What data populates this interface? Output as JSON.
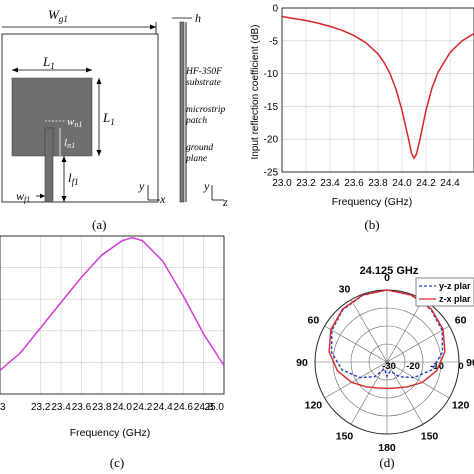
{
  "panel_a": {
    "caption": "(a)",
    "dim_wg1": "W",
    "dim_wg1_sub": "g1",
    "dim_L1_top": "L",
    "dim_L1_top_sub": "1",
    "dim_L1_right": "L",
    "dim_L1_right_sub": "1",
    "dim_wn1": "w",
    "dim_wn1_sub": "n1",
    "dim_ln1": "l",
    "dim_ln1_sub": "n1",
    "dim_lf1": "l",
    "dim_lf1_sub": "f1",
    "dim_wf1": "w",
    "dim_wf1_sub": "f1",
    "dim_h": "h",
    "label_substrate_1": "HF-350F",
    "label_substrate_2": "substrate",
    "label_patch_1": "microstrip",
    "label_patch_2": "patch",
    "label_ground_1": "ground",
    "label_ground_2": "plane",
    "axis_front_y": "y",
    "axis_front_x": "x",
    "axis_side_y": "y",
    "axis_side_z": "z",
    "colors": {
      "patch": "#6e6e6e",
      "outline": "#333333"
    }
  },
  "panel_b": {
    "caption": "(b)",
    "chart_data": {
      "type": "line",
      "xlabel": "Frequency (GHz)",
      "ylabel": "Input reflection coefficient (dB)",
      "xlim": [
        23.0,
        24.6
      ],
      "ylim": [
        -25,
        0
      ],
      "xticks": [
        "23.0",
        "23.2",
        "23.4",
        "23.6",
        "23.8",
        "24.0",
        "24.2",
        "24.4"
      ],
      "yticks": [
        "0",
        "-5",
        "-10",
        "-15",
        "-20",
        "-25"
      ],
      "grid": true,
      "line_color": "#d62728",
      "series": [
        {
          "x": [
            23.0,
            23.1,
            23.2,
            23.3,
            23.4,
            23.5,
            23.6,
            23.7,
            23.8,
            23.85,
            23.9,
            23.95,
            24.0,
            24.05,
            24.08,
            24.1,
            24.12,
            24.15,
            24.2,
            24.25,
            24.3,
            24.4,
            24.5,
            24.6
          ],
          "y": [
            -1.3,
            -1.6,
            -1.9,
            -2.3,
            -2.8,
            -3.4,
            -4.2,
            -5.3,
            -7.0,
            -8.3,
            -10.0,
            -12.4,
            -15.6,
            -19.6,
            -22.2,
            -22.9,
            -22.3,
            -20.0,
            -15.6,
            -12.2,
            -9.8,
            -6.8,
            -5.0,
            -3.9
          ]
        }
      ]
    }
  },
  "panel_c": {
    "caption": "(c)",
    "chart_data": {
      "type": "line",
      "xlabel": "Frequency (GHz)",
      "xlim": [
        22.8,
        25.0
      ],
      "xticks": [
        "23.2",
        "23.4",
        "23.6",
        "23.8",
        "24.0",
        "24.2",
        "24.4",
        "24.6",
        "24.8",
        "25.0"
      ],
      "xtick_prefix": "3",
      "grid": true,
      "line_color": "#d63bd6",
      "series": [
        {
          "x": [
            22.8,
            23.0,
            23.2,
            23.4,
            23.6,
            23.8,
            24.0,
            24.1,
            24.2,
            24.4,
            24.6,
            24.8,
            25.0
          ],
          "y": [
            0.15,
            0.26,
            0.42,
            0.58,
            0.74,
            0.88,
            0.97,
            0.99,
            0.97,
            0.84,
            0.62,
            0.38,
            0.18
          ]
        }
      ]
    }
  },
  "panel_d": {
    "caption": "(d)",
    "chart_data": {
      "type": "polar",
      "title": "24.125 GHz",
      "legend": [
        "y-z plane",
        "z-x plane"
      ],
      "legend_visible": [
        "y-z plar",
        "z-x plar"
      ],
      "legend_placement": "top-right",
      "angle_labels": [
        "0",
        "30",
        "60",
        "90",
        "120",
        "150",
        "180",
        "150",
        "120",
        "90",
        "60",
        "30"
      ],
      "radial_labels": [
        "-30",
        "-20",
        "-10",
        "0"
      ],
      "rlim": [
        -30,
        0
      ],
      "series": [
        {
          "name": "y-z plane",
          "color": "#1f3fbf",
          "dash": "dashed",
          "theta": [
            0,
            20,
            40,
            60,
            80,
            100,
            120,
            140,
            160,
            180,
            200,
            220,
            240,
            260,
            280,
            300,
            320,
            340,
            360
          ],
          "r_db": [
            0,
            -0.4,
            -1.5,
            -3.5,
            -6.5,
            -11,
            -17,
            -22,
            -26,
            -24,
            -27,
            -22,
            -17,
            -11,
            -6.5,
            -3.5,
            -1.5,
            -0.4,
            0
          ]
        },
        {
          "name": "z-x plane",
          "color": "#d62728",
          "dash": "solid",
          "theta": [
            0,
            20,
            40,
            60,
            80,
            100,
            120,
            140,
            160,
            180,
            200,
            220,
            240,
            260,
            280,
            300,
            320,
            340,
            360
          ],
          "r_db": [
            0,
            -0.3,
            -1.2,
            -3.0,
            -5.5,
            -9,
            -13,
            -16.5,
            -18.5,
            -19,
            -18.5,
            -16.5,
            -13,
            -9,
            -5.5,
            -3.0,
            -1.2,
            -0.3,
            0
          ]
        }
      ]
    }
  }
}
